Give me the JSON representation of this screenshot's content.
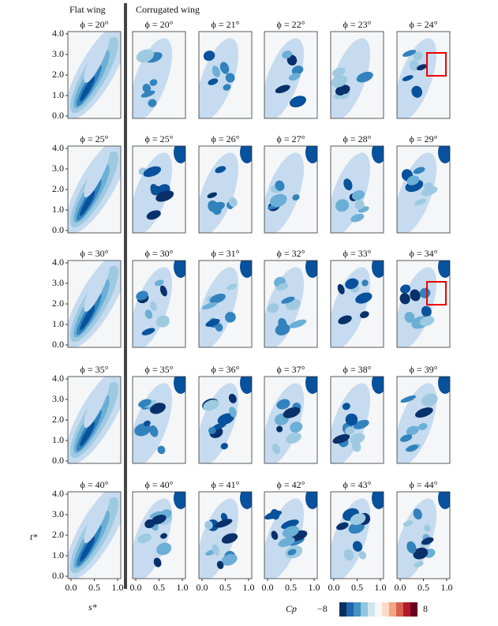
{
  "headers": {
    "flat": "Flat wing",
    "corrugated": "Corrugated wing"
  },
  "panels": [
    [
      "ϕ = 20°",
      "ϕ = 20°",
      "ϕ = 21°",
      "ϕ = 22°",
      "ϕ = 23°",
      "ϕ = 24°"
    ],
    [
      "ϕ = 25°",
      "ϕ = 25°",
      "ϕ = 26°",
      "ϕ = 27°",
      "ϕ = 28°",
      "ϕ = 29°"
    ],
    [
      "ϕ = 30°",
      "ϕ = 30°",
      "ϕ = 31°",
      "ϕ = 32°",
      "ϕ = 33°",
      "ϕ = 34°"
    ],
    [
      "ϕ = 35°",
      "ϕ = 35°",
      "ϕ = 36°",
      "ϕ = 37°",
      "ϕ = 38°",
      "ϕ = 39°"
    ],
    [
      "ϕ = 40°",
      "ϕ = 40°",
      "ϕ = 41°",
      "ϕ = 42°",
      "ϕ = 43°",
      "ϕ = 44°"
    ]
  ],
  "y_axis": {
    "label": "t*",
    "ticks": [
      "0.0",
      "1.0",
      "2.0",
      "3.0",
      "4.0"
    ]
  },
  "x_axis": {
    "label": "s*",
    "ticks": [
      "0.0",
      "0.5",
      "1.0"
    ]
  },
  "colorbar": {
    "label": "Cp",
    "min": "−8",
    "max": "8"
  }
}
